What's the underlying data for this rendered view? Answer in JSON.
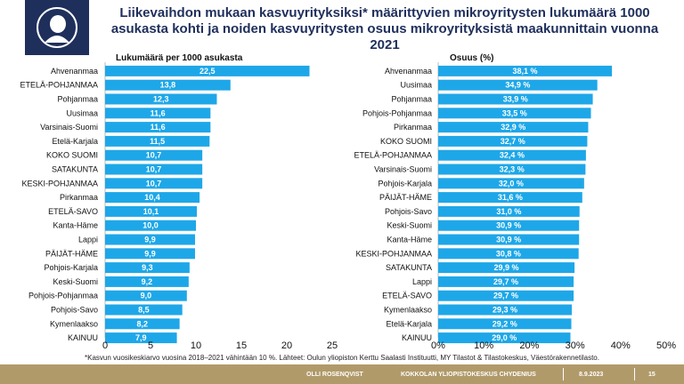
{
  "title": "Liikevaihdon mukaan kasvuyrityksiksi* määrittyvien mikroyritysten lukumäärä 1000 asukasta kohti ja noiden kasvuyritysten osuus mikroyrityksistä maakunnittain vuonna 2021",
  "footnote": "*Kasvun vuosikeskiarvo vuosina 2018–2021 vähintään 10 %. Lähteet: Oulun yliopiston Kerttu Saalasti Instituutti, MY Tilastot & Tilastokeskus, Väestörakennetilasto.",
  "footer": {
    "author": "OLLI ROSENQVIST",
    "org": "KOKKOLAN YLIOPISTOKESKUS CHYDENIUS",
    "date": "8.9.2023",
    "page": "15"
  },
  "colors": {
    "bar": "#1ea7e8",
    "title": "#1f2f5c",
    "footer": "#b19a6a",
    "logo": "#1f2f5c"
  },
  "logo_icon": "university-seal-icon",
  "chart_data": [
    {
      "type": "bar",
      "orientation": "horizontal",
      "title": "Lukumäärä per 1000 asukasta",
      "categories": [
        "Ahvenanmaa",
        "ETELÄ-POHJANMAA",
        "Pohjanmaa",
        "Uusimaa",
        "Varsinais-Suomi",
        "Etelä-Karjala",
        "KOKO SUOMI",
        "SATAKUNTA",
        "KESKI-POHJANMAA",
        "Pirkanmaa",
        "ETELÄ-SAVO",
        "Kanta-Häme",
        "Lappi",
        "PÄIJÄT-HÄME",
        "Pohjois-Karjala",
        "Keski-Suomi",
        "Pohjois-Pohjanmaa",
        "Pohjois-Savo",
        "Kymenlaakso",
        "KAINUU"
      ],
      "values": [
        22.5,
        13.8,
        12.3,
        11.6,
        11.6,
        11.5,
        10.7,
        10.7,
        10.7,
        10.4,
        10.1,
        10.0,
        9.9,
        9.9,
        9.3,
        9.2,
        9.0,
        8.5,
        8.2,
        7.9
      ],
      "data_labels": [
        "22,5",
        "13,8",
        "12,3",
        "11,6",
        "11,6",
        "11,5",
        "10,7",
        "10,7",
        "10,7",
        "10,4",
        "10,1",
        "10,0",
        "9,9",
        "9,9",
        "9,3",
        "9,2",
        "9,0",
        "8,5",
        "8,2",
        "7,9"
      ],
      "xlim": [
        0,
        25
      ],
      "ticks": [
        0,
        5,
        10,
        15,
        20,
        25
      ],
      "tick_labels": [
        "0",
        "5",
        "10",
        "15",
        "20",
        "25"
      ]
    },
    {
      "type": "bar",
      "orientation": "horizontal",
      "title": "Osuus (%)",
      "categories": [
        "Ahvenanmaa",
        "Uusimaa",
        "Pohjanmaa",
        "Pohjois-Pohjanmaa",
        "Pirkanmaa",
        "KOKO SUOMI",
        "ETELÄ-POHJANMAA",
        "Varsinais-Suomi",
        "Pohjois-Karjala",
        "PÄIJÄT-HÄME",
        "Pohjois-Savo",
        "Keski-Suomi",
        "Kanta-Häme",
        "KESKI-POHJANMAA",
        "SATAKUNTA",
        "Lappi",
        "ETELÄ-SAVO",
        "Kymenlaakso",
        "Etelä-Karjala",
        "KAINUU"
      ],
      "values": [
        38.1,
        34.9,
        33.9,
        33.5,
        32.9,
        32.7,
        32.4,
        32.3,
        32.0,
        31.6,
        31.0,
        30.9,
        30.9,
        30.8,
        29.9,
        29.7,
        29.7,
        29.3,
        29.2,
        29.0
      ],
      "data_labels": [
        "38,1 %",
        "34,9 %",
        "33,9 %",
        "33,5 %",
        "32,9 %",
        "32,7 %",
        "32,4 %",
        "32,3 %",
        "32,0 %",
        "31,6 %",
        "31,0 %",
        "30,9 %",
        "30,9 %",
        "30,8 %",
        "29,9 %",
        "29,7 %",
        "29,7 %",
        "29,3 %",
        "29,2 %",
        "29,0 %"
      ],
      "xlim": [
        0,
        50
      ],
      "ticks": [
        0,
        10,
        20,
        30,
        40,
        50
      ],
      "tick_labels": [
        "0%",
        "10%",
        "20%",
        "30%",
        "40%",
        "50%"
      ]
    }
  ]
}
